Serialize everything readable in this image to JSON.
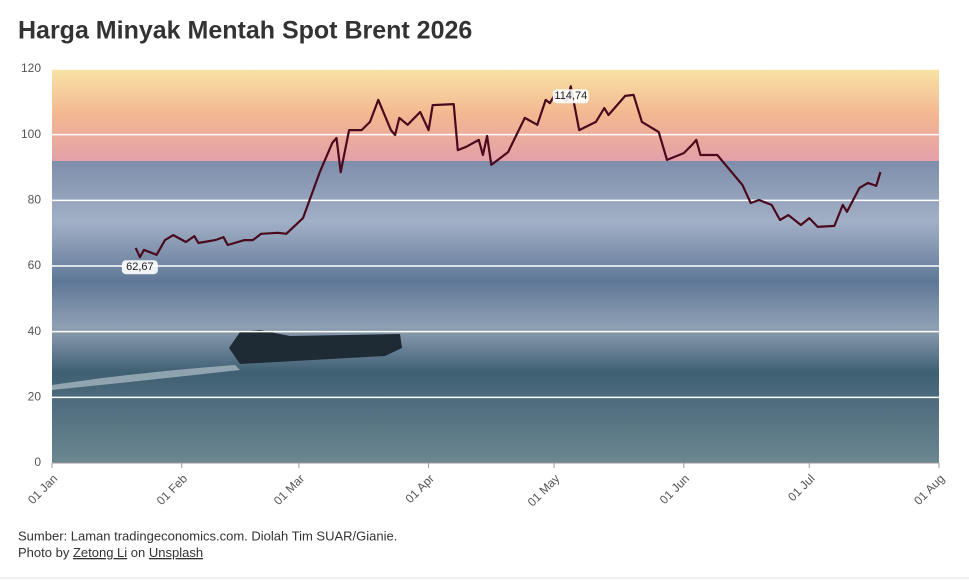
{
  "chart_data": {
    "type": "line",
    "title": "Harga Minyak Mentah Spot Brent 2026",
    "x": [
      "21 Jan",
      "22 Jan",
      "23 Jan",
      "26 Jan",
      "28 Jan",
      "30 Jan",
      "02 Feb",
      "04 Feb",
      "05 Feb",
      "09 Feb",
      "11 Feb",
      "12 Feb",
      "16 Feb",
      "18 Feb",
      "20 Feb",
      "24 Feb",
      "26 Feb",
      "02 Mar",
      "04 Mar",
      "06 Mar",
      "09 Mar",
      "10 Mar",
      "11 Mar",
      "13 Mar",
      "16 Mar",
      "18 Mar",
      "20 Mar",
      "23 Mar",
      "24 Mar",
      "25 Mar",
      "27 Mar",
      "30 Mar",
      "01 Apr",
      "02 Apr",
      "07 Apr",
      "08 Apr",
      "10 Apr",
      "13 Apr",
      "14 Apr",
      "15 Apr",
      "16 Apr",
      "20 Apr",
      "22 Apr",
      "24 Apr",
      "27 Apr",
      "29 Apr",
      "30 Apr",
      "01 May",
      "04 May",
      "05 May",
      "07 May",
      "11 May",
      "13 May",
      "14 May",
      "18 May",
      "20 May",
      "22 May",
      "26 May",
      "28 May",
      "01 Jun",
      "03 Jun",
      "04 Jun",
      "05 Jun",
      "09 Jun",
      "11 Jun",
      "15 Jun",
      "17 Jun",
      "19 Jun",
      "22 Jun",
      "24 Jun",
      "26 Jun",
      "29 Jun",
      "01 Jul",
      "03 Jul",
      "07 Jul",
      "09 Jul",
      "10 Jul",
      "13 Jul",
      "15 Jul",
      "17 Jul",
      "18 Jul"
    ],
    "series": [
      {
        "color": "#4a0a1e",
        "values": [
          65.5,
          62.67,
          64.9,
          63.4,
          67.9,
          69.4,
          67.3,
          69.1,
          67,
          67.9,
          68.8,
          66.4,
          67.9,
          67.9,
          69.8,
          70.1,
          69.8,
          74.6,
          81.6,
          88.6,
          97.5,
          99,
          88.6,
          101.4,
          101.4,
          103.9,
          110.6,
          101.4,
          99.9,
          105.1,
          103,
          106.9,
          101.4,
          109,
          109.3,
          95.3,
          96.3,
          98.4,
          93.8,
          99.6,
          90.8,
          94.7,
          99.9,
          105.1,
          103,
          110.6,
          109.6,
          111.8,
          110.3,
          114.74,
          101.4,
          103.9,
          108.1,
          106,
          111.8,
          112.1,
          103.9,
          100.8,
          92.3,
          94.4,
          96.9,
          98.4,
          93.8,
          93.8,
          90.8,
          84.7,
          79.2,
          80.1,
          78.6,
          74,
          75.5,
          72.5,
          74.6,
          71.9,
          72.2,
          78.6,
          76.5,
          83.8,
          85.3,
          84.4,
          88.6
        ],
        "value_labels": [
          null,
          "62,67",
          null,
          null,
          null,
          null,
          null,
          null,
          null,
          null,
          null,
          null,
          null,
          null,
          null,
          null,
          null,
          null,
          null,
          null,
          null,
          null,
          null,
          null,
          null,
          null,
          null,
          null,
          null,
          null,
          null,
          null,
          null,
          null,
          null,
          null,
          null,
          null,
          null,
          null,
          null,
          null,
          null,
          null,
          null,
          null,
          null,
          null,
          null,
          "114,74",
          null,
          null,
          null,
          null,
          null,
          null,
          null,
          null,
          null,
          null,
          null,
          null,
          null,
          null,
          null,
          null,
          null,
          null,
          null,
          null,
          null,
          null,
          null,
          null,
          null,
          null,
          null,
          null,
          null,
          null,
          null
        ]
      }
    ],
    "xlim": [
      "01 Jan",
      "01 Aug"
    ],
    "xticks": [
      "01 Jan",
      "01 Feb",
      "01 Mar",
      "01 Apr",
      "01 May",
      "01 Jun",
      "01 Jul",
      "01 Aug"
    ],
    "ylim": [
      0,
      120
    ],
    "yticks": [
      0,
      20,
      40,
      60,
      80,
      100,
      120
    ],
    "grid": true,
    "source": "Sumber: Laman tradingeconomics.com. Diolah Tim SUAR/Gianie.",
    "credit": {
      "prefix": "Photo by",
      "author": "Zetong Li",
      "middle": "on",
      "site": "Unsplash"
    }
  }
}
